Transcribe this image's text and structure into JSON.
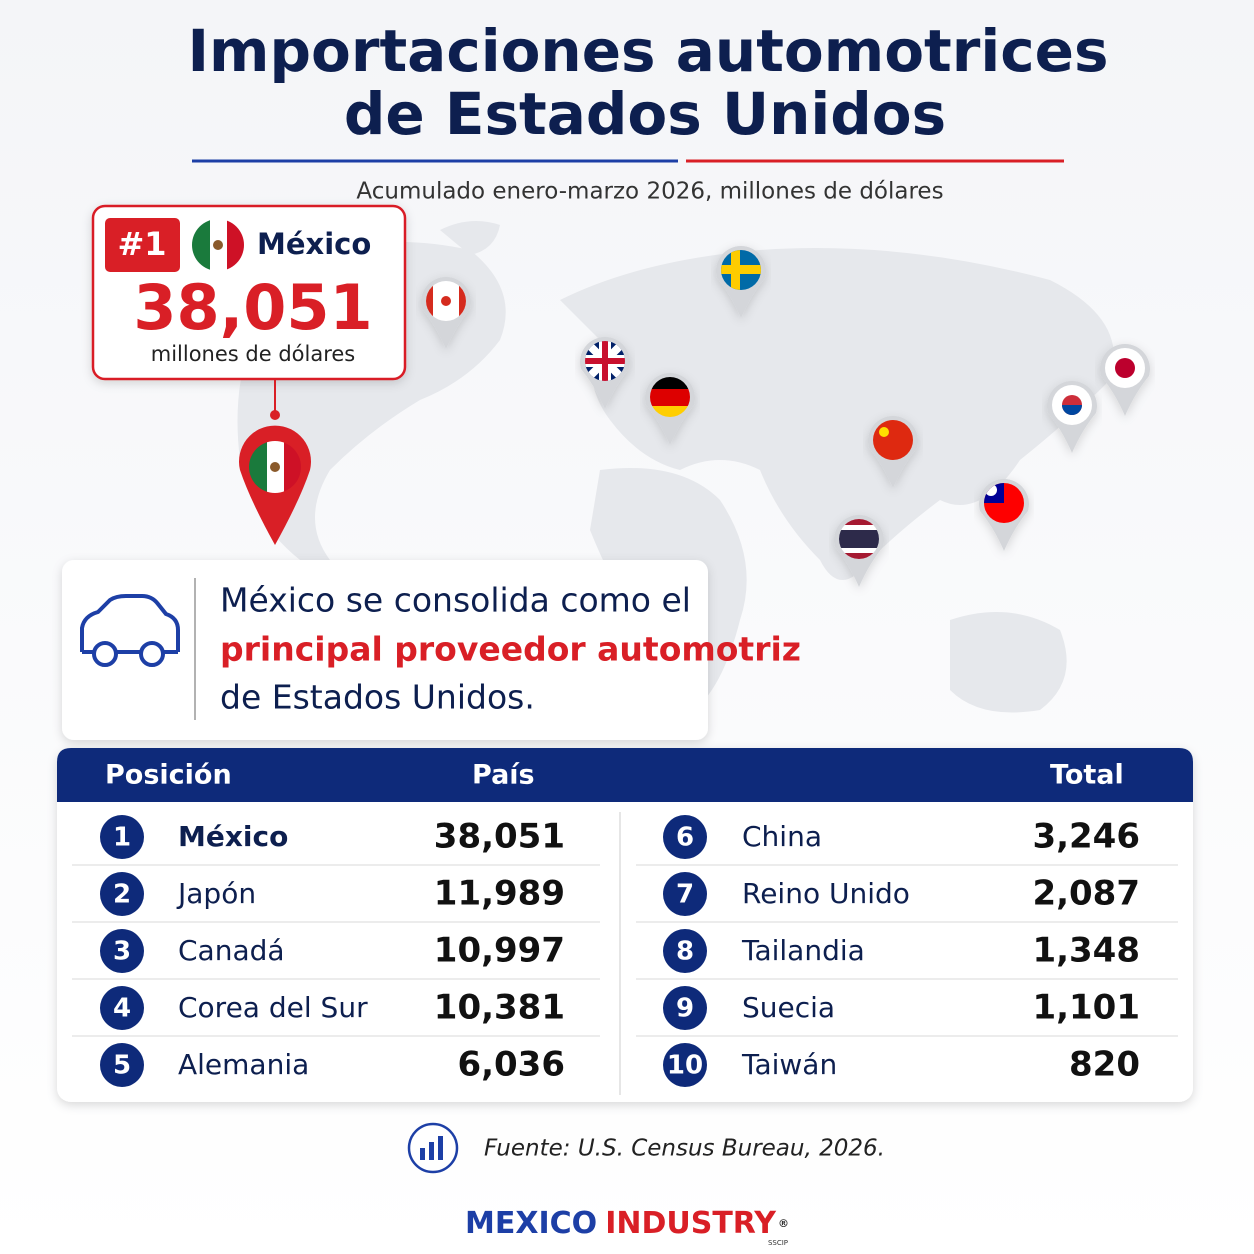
{
  "header": {
    "title_line1": "Importaciones automotrices",
    "title_line2": "de Estados Unidos",
    "subtitle": "Acumulado enero-marzo 2026, millones de dólares"
  },
  "highlight": {
    "rank": "#1",
    "country": "México",
    "value": "38,051",
    "unit": "millones de dólares"
  },
  "callout": {
    "text_before": "México se consolida como el",
    "emphasis": "principal proveedor automotriz",
    "text_after": "de Estados Unidos."
  },
  "table": {
    "headers": [
      "Posición",
      "País",
      "Total"
    ],
    "rows": [
      [
        "1",
        "México",
        "38,051"
      ],
      [
        "2",
        "Japón",
        "11,989"
      ],
      [
        "3",
        "Canadá",
        "10,997"
      ],
      [
        "4",
        "Corea del Sur",
        "10,381"
      ],
      [
        "5",
        "Alemania",
        "6,036"
      ],
      [
        "6",
        "China",
        "3,246"
      ],
      [
        "7",
        "Reino Unido",
        "2,087"
      ],
      [
        "8",
        "Tailandia",
        "1,348"
      ],
      [
        "9",
        "Suecia",
        "1,101"
      ],
      [
        "10",
        "Taiwán",
        "820"
      ]
    ]
  },
  "source": "Fuente: U.S. Census Bureau, 2026.",
  "brand": {
    "part1": "MEXICO",
    "part2": "INDUSTRY",
    "mark": "®",
    "sub": "SSCIP"
  }
}
